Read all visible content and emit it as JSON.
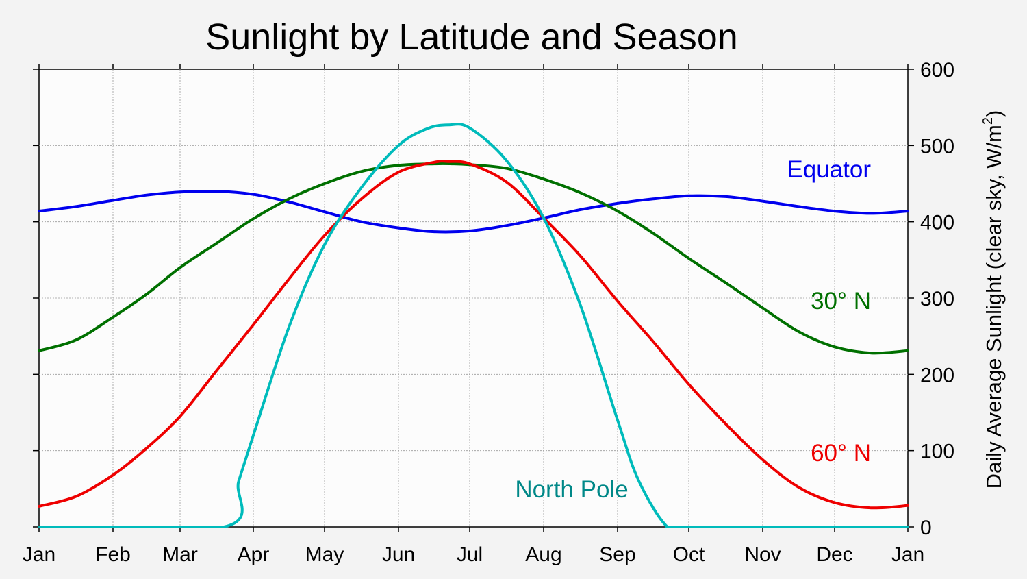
{
  "chart_data": {
    "type": "line",
    "title": "Sunlight by Latitude and Season",
    "xlabel": "",
    "ylabel_main": "Daily Average Sunlight (clear sky, W/m",
    "ylabel_sup": "2",
    "ylabel_close": ")",
    "x_tick_labels": [
      "Jan",
      "Feb",
      "Mar",
      "Apr",
      "May",
      "Jun",
      "Jul",
      "Aug",
      "Sep",
      "Oct",
      "Nov",
      "Dec",
      "Jan"
    ],
    "y_ticks": [
      0,
      100,
      200,
      300,
      400,
      500,
      600
    ],
    "y_tick_labels": [
      "0",
      "100",
      "200",
      "300",
      "400",
      "500",
      "600"
    ],
    "ylim": [
      0,
      600
    ],
    "y_axis_side": "right",
    "grid": true,
    "series": [
      {
        "name": "Equator",
        "color": "#0000ee",
        "label_color": "#0000ee",
        "months": [
          0,
          0.5,
          1,
          1.5,
          2,
          2.5,
          3,
          3.5,
          4,
          4.5,
          5,
          5.5,
          6,
          6.5,
          7,
          7.5,
          8,
          8.5,
          9,
          9.5,
          10,
          10.5,
          11,
          11.5,
          12
        ],
        "values": [
          414,
          420,
          428,
          435,
          439,
          440,
          436,
          426,
          413,
          400,
          392,
          387,
          388,
          395,
          405,
          416,
          424,
          430,
          434,
          433,
          427,
          420,
          414,
          411,
          414
        ]
      },
      {
        "name": "30° N",
        "color": "#007000",
        "label_color": "#007000",
        "months": [
          0,
          0.5,
          1,
          1.5,
          2,
          2.5,
          3,
          3.5,
          4,
          4.5,
          5,
          5.5,
          5.75,
          6,
          6.5,
          7,
          7.5,
          8,
          8.5,
          9,
          9.5,
          10,
          10.5,
          11,
          11.5,
          12
        ],
        "values": [
          231,
          245,
          275,
          305,
          340,
          372,
          404,
          430,
          450,
          466,
          474,
          476,
          476,
          475,
          470,
          456,
          438,
          414,
          385,
          352,
          320,
          287,
          256,
          236,
          228,
          231
        ]
      },
      {
        "name": "60° N",
        "color": "#ee0000",
        "label_color": "#ee0000",
        "months": [
          0,
          0.5,
          1,
          1.5,
          2,
          2.5,
          3,
          3.5,
          4,
          4.5,
          5,
          5.5,
          5.7,
          6,
          6.5,
          7,
          7.5,
          8,
          8.5,
          9,
          9.5,
          10,
          10.5,
          11,
          11.5,
          12
        ],
        "values": [
          27,
          40,
          68,
          103,
          145,
          205,
          265,
          325,
          382,
          430,
          465,
          478,
          479,
          476,
          452,
          405,
          355,
          296,
          243,
          187,
          135,
          88,
          52,
          32,
          25,
          28
        ]
      },
      {
        "name": "North Pole",
        "color": "#00bbbb",
        "label_color": "#008888",
        "months": [
          0,
          2.6,
          2.8,
          3.0,
          3.5,
          4.0,
          4.5,
          5.0,
          5.4,
          5.7,
          6.0,
          6.5,
          7.0,
          7.5,
          8.0,
          8.3,
          8.7,
          9.0,
          12
        ],
        "values": [
          0,
          0,
          60,
          120,
          262,
          370,
          445,
          500,
          522,
          527,
          523,
          480,
          405,
          290,
          140,
          60,
          0,
          0,
          0
        ]
      }
    ]
  }
}
